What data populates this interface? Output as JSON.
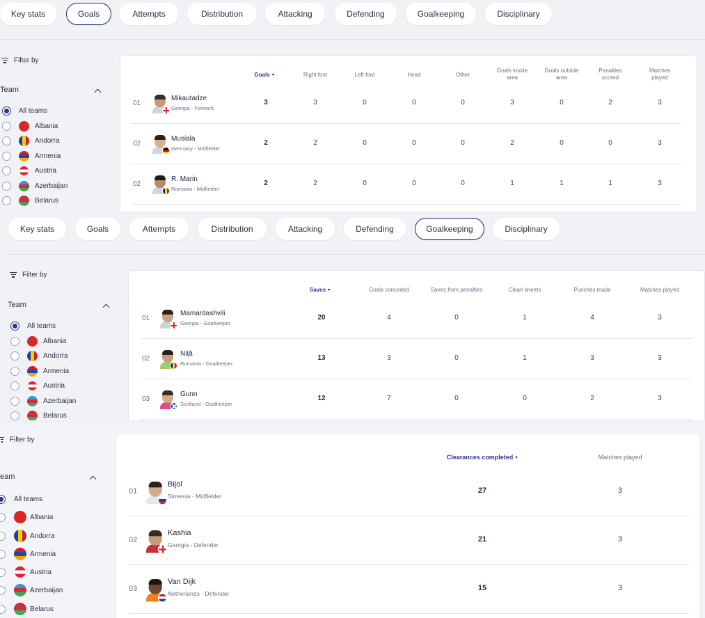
{
  "sections": [
    {
      "tabs": [
        "Key stats",
        "Goals",
        "Attempts",
        "Distribution",
        "Attacking",
        "Defending",
        "Goalkeeping",
        "Disciplinary"
      ],
      "active_tab": "Goals",
      "filter_label": "Filter by",
      "team_label": "Team",
      "teams": [
        "All teams",
        "Albania",
        "Andorra",
        "Armenia",
        "Austria",
        "Azerbaijan",
        "Belarus"
      ],
      "columns": [
        "Goals",
        "Right foot",
        "Left foot",
        "Head",
        "Other",
        "Goals inside area",
        "Goals outside area",
        "Penalties scored",
        "Matches played"
      ],
      "rows": [
        {
          "rank": "01",
          "name": "Mikautadze",
          "meta": "Georgia - Forward",
          "values": [
            "3",
            "3",
            "0",
            "0",
            "0",
            "3",
            "0",
            "2",
            "3"
          ]
        },
        {
          "rank": "02",
          "name": "Musiala",
          "meta": "Germany - Midfielder",
          "values": [
            "2",
            "2",
            "0",
            "0",
            "0",
            "2",
            "0",
            "0",
            "3"
          ]
        },
        {
          "rank": "02",
          "name": "R. Marin",
          "meta": "Romania - Midfielder",
          "values": [
            "2",
            "2",
            "0",
            "0",
            "0",
            "1",
            "1",
            "1",
            "3"
          ]
        }
      ]
    },
    {
      "tabs": [
        "Key stats",
        "Goals",
        "Attempts",
        "Distribution",
        "Attacking",
        "Defending",
        "Goalkeeping",
        "Disciplinary"
      ],
      "active_tab": "Goalkeeping",
      "filter_label": "Filter by",
      "team_label": "Team",
      "teams": [
        "All teams",
        "Albania",
        "Andorra",
        "Armenia",
        "Austria",
        "Azerbaijan",
        "Belarus"
      ],
      "columns": [
        "Saves",
        "Goals conceded",
        "Saves from penalties",
        "Clean sheets",
        "Punches made",
        "Matches played"
      ],
      "rows": [
        {
          "rank": "01",
          "name": "Mamardashvili",
          "meta": "Georgia - Goalkeeper",
          "values": [
            "20",
            "4",
            "0",
            "1",
            "4",
            "3"
          ]
        },
        {
          "rank": "02",
          "name": "Niță",
          "meta": "Romania - Goalkeeper",
          "values": [
            "13",
            "3",
            "0",
            "1",
            "3",
            "3"
          ]
        },
        {
          "rank": "03",
          "name": "Gunn",
          "meta": "Scotland - Goalkeeper",
          "values": [
            "12",
            "7",
            "0",
            "0",
            "2",
            "3"
          ]
        }
      ]
    },
    {
      "filter_label": "Filter by",
      "team_label": "eam",
      "teams": [
        "All teams",
        "Albania",
        "Andorra",
        "Armenia",
        "Austria",
        "Azerbaijan",
        "Belarus"
      ],
      "columns": [
        "Clearances completed",
        "Matches played"
      ],
      "rows": [
        {
          "rank": "01",
          "name": "Bijol",
          "meta": "Slovenia - Midfielder",
          "values": [
            "27",
            "3"
          ]
        },
        {
          "rank": "02",
          "name": "Kashia",
          "meta": "Georgia - Defender",
          "values": [
            "21",
            "3"
          ]
        },
        {
          "rank": "03",
          "name": "Van Dijk",
          "meta": "Netherlands - Defender",
          "values": [
            "15",
            "3"
          ]
        }
      ]
    }
  ],
  "colors": {
    "accent": "#2c3592",
    "background": "#f1f2f6",
    "card": "#ffffff"
  },
  "icons": [
    "filter-icon",
    "chevron-up-icon",
    "sort-desc-icon",
    "radio-icon",
    "flag-icon"
  ]
}
